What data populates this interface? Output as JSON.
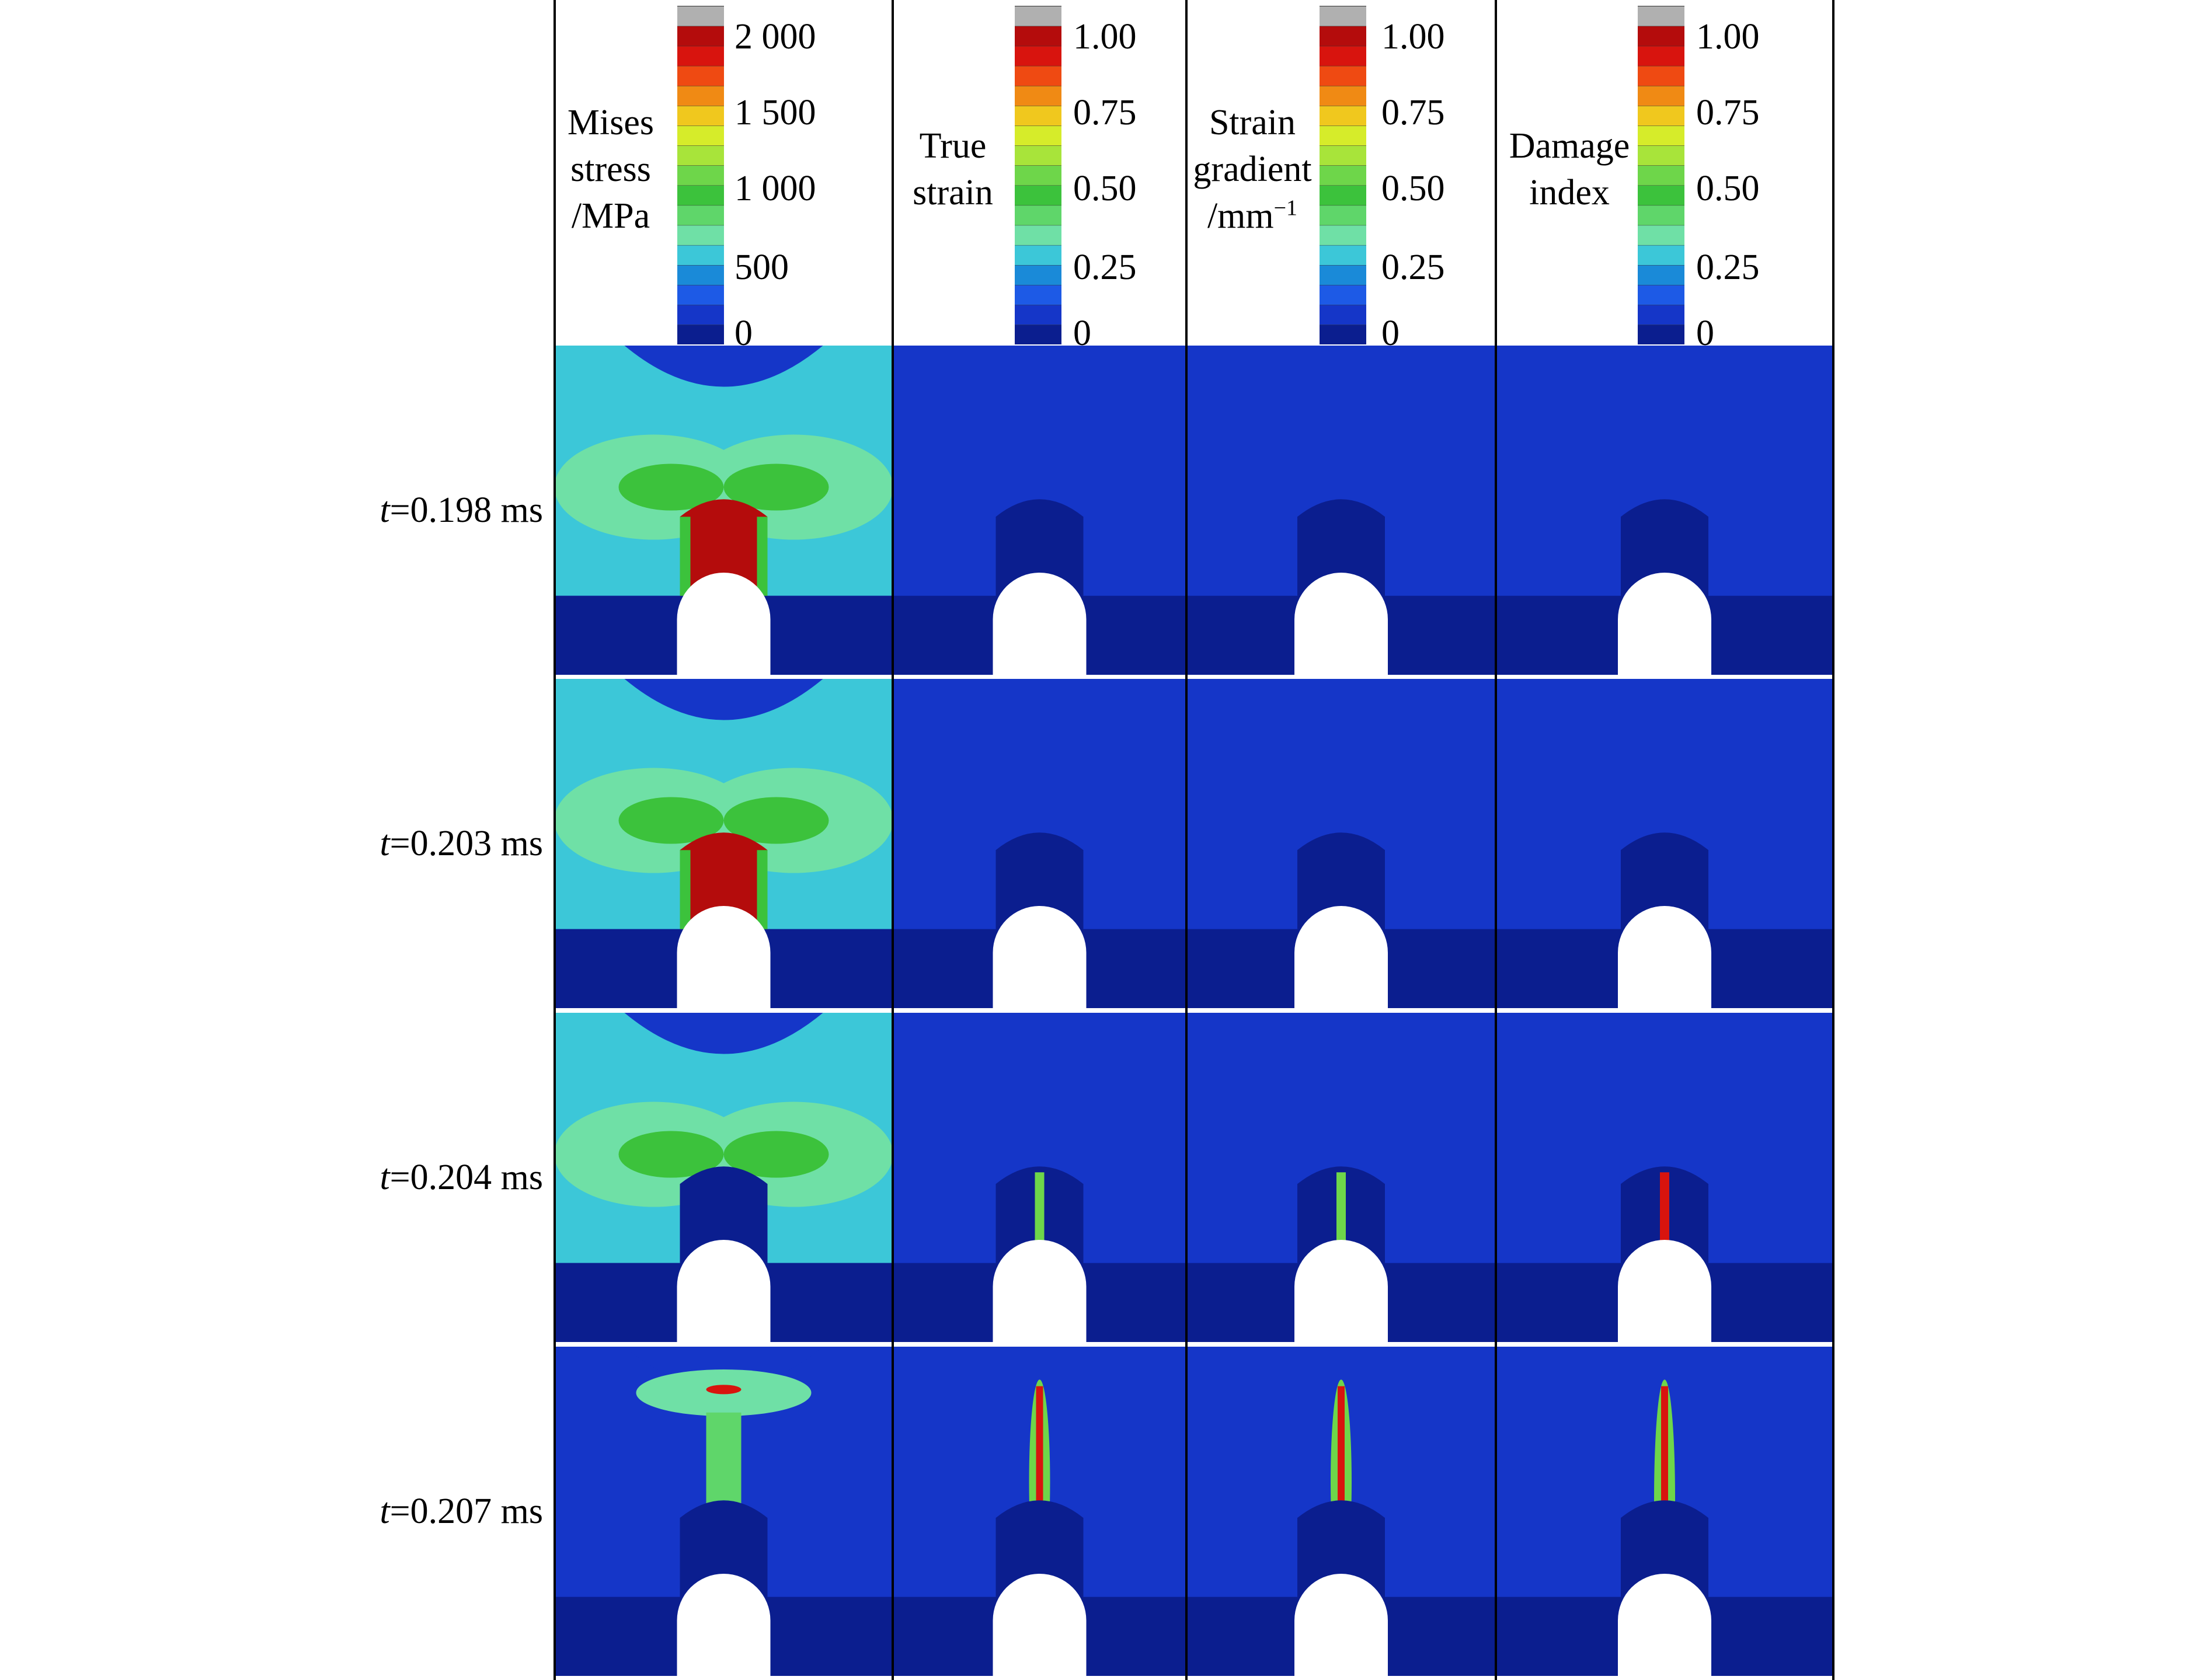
{
  "columns": [
    {
      "label": [
        "Mises",
        "stress",
        "/MPa"
      ],
      "ticks": [
        "2 000",
        "1 500",
        "1 000",
        "500",
        "0"
      ]
    },
    {
      "label": [
        "True",
        "strain"
      ],
      "ticks": [
        "1.00",
        "0.75",
        "0.50",
        "0.25",
        "0"
      ]
    },
    {
      "label": [
        "Strain",
        "gradient",
        "/mm"
      ],
      "label_sup": "−1",
      "ticks": [
        "1.00",
        "0.75",
        "0.50",
        "0.25",
        "0"
      ]
    },
    {
      "label": [
        "Damage",
        "index"
      ],
      "ticks": [
        "1.00",
        "0.75",
        "0.50",
        "0.25",
        "0"
      ]
    }
  ],
  "rows": [
    {
      "t_symbol": "t",
      "t_value": "=0.198 ms"
    },
    {
      "t_symbol": "t",
      "t_value": "=0.203 ms"
    },
    {
      "t_symbol": "t",
      "t_value": "=0.204 ms"
    },
    {
      "t_symbol": "t",
      "t_value": "=0.207 ms"
    }
  ],
  "colormap": [
    "#0b1e8f",
    "#1536c8",
    "#1d5ae6",
    "#1a8ad8",
    "#3cc7d8",
    "#6fe0a6",
    "#5fd66a",
    "#3cc23c",
    "#6ed64a",
    "#a8e43a",
    "#d6ec2a",
    "#f0c81e",
    "#f08a14",
    "#ef4a12",
    "#d8140e",
    "#b40c0c",
    "#b0b0b0"
  ],
  "background": "#ffffff"
}
